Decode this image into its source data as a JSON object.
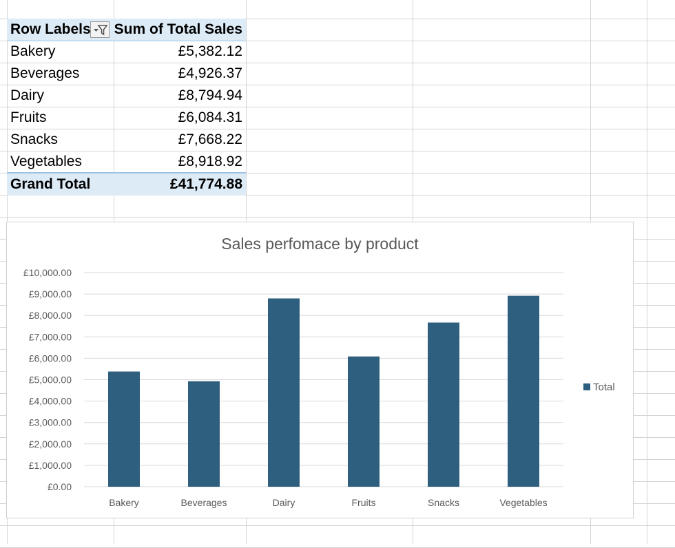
{
  "pivot": {
    "header": {
      "row_labels": "Row Labels",
      "value_header": "Sum of Total Sales"
    },
    "rows": [
      {
        "label": "Bakery",
        "value": "£5,382.12"
      },
      {
        "label": "Beverages",
        "value": "£4,926.37"
      },
      {
        "label": "Dairy",
        "value": "£8,794.94"
      },
      {
        "label": "Fruits",
        "value": "£6,084.31"
      },
      {
        "label": "Snacks",
        "value": "£7,668.22"
      },
      {
        "label": "Vegetables",
        "value": "£8,918.92"
      }
    ],
    "total": {
      "label": "Grand Total",
      "value": "£41,774.88"
    }
  },
  "chart_data": {
    "type": "bar",
    "title": "Sales perfomace by product",
    "categories": [
      "Bakery",
      "Beverages",
      "Dairy",
      "Fruits",
      "Snacks",
      "Vegetables"
    ],
    "series": [
      {
        "name": "Total",
        "values": [
          5382.12,
          4926.37,
          8794.94,
          6084.31,
          7668.22,
          8918.92
        ]
      }
    ],
    "ylim": [
      0,
      10000
    ],
    "yticks": [
      "£0.00",
      "£1,000.00",
      "£2,000.00",
      "£3,000.00",
      "£4,000.00",
      "£5,000.00",
      "£6,000.00",
      "£7,000.00",
      "£8,000.00",
      "£9,000.00",
      "£10,000.00"
    ],
    "grid": true,
    "legend_position": "right",
    "bar_color": "#2e5f7f"
  }
}
